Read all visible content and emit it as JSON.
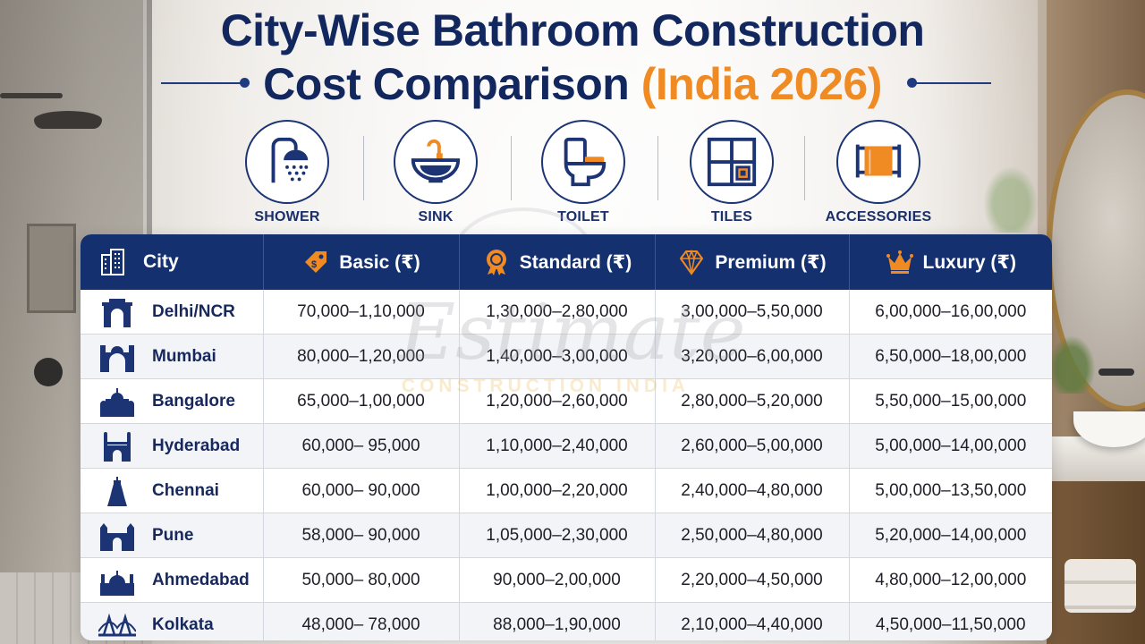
{
  "header": {
    "title_line1": "City-Wise Bathroom Construction",
    "title_line2": "Cost Comparison",
    "title_accent": "(India 2026)"
  },
  "icons": [
    {
      "label": "SHOWER",
      "icon": "shower-icon"
    },
    {
      "label": "SINK",
      "icon": "sink-icon"
    },
    {
      "label": "TOILET",
      "icon": "toilet-icon"
    },
    {
      "label": "TILES",
      "icon": "tiles-icon"
    },
    {
      "label": "ACCESSORIES",
      "icon": "towel-rack-icon"
    }
  ],
  "table": {
    "headers": {
      "city": "City",
      "basic": "Basic (₹)",
      "standard": "Standard (₹)",
      "premium": "Premium (₹)",
      "luxury": "Luxury (₹)"
    },
    "rows": [
      {
        "city": "Delhi/NCR",
        "basic": "70,000–1,10,000",
        "standard": "1,30,000–2,80,000",
        "premium": "3,00,000–5,50,000",
        "luxury": "6,00,000–16,00,000"
      },
      {
        "city": "Mumbai",
        "basic": "80,000–1,20,000",
        "standard": "1,40,000–3,00,000",
        "premium": "3,20,000–6,00,000",
        "luxury": "6,50,000–18,00,000"
      },
      {
        "city": "Bangalore",
        "basic": "65,000–1,00,000",
        "standard": "1,20,000–2,60,000",
        "premium": "2,80,000–5,20,000",
        "luxury": "5,50,000–15,00,000"
      },
      {
        "city": "Hyderabad",
        "basic": "60,000– 95,000",
        "standard": "1,10,000–2,40,000",
        "premium": "2,60,000–5,00,000",
        "luxury": "5,00,000–14,00,000"
      },
      {
        "city": "Chennai",
        "basic": "60,000– 90,000",
        "standard": "1,00,000–2,20,000",
        "premium": "2,40,000–4,80,000",
        "luxury": "5,00,000–13,50,000"
      },
      {
        "city": "Pune",
        "basic": "58,000– 90,000",
        "standard": "1,05,000–2,30,000",
        "premium": "2,50,000–4,80,000",
        "luxury": "5,20,000–14,00,000"
      },
      {
        "city": "Ahmedabad",
        "basic": "50,000– 80,000",
        "standard": "90,000–2,00,000",
        "premium": "2,20,000–4,50,000",
        "luxury": "4,80,000–12,00,000"
      },
      {
        "city": "Kolkata",
        "basic": "48,000– 78,000",
        "standard": "88,000–1,90,000",
        "premium": "2,10,000–4,40,000",
        "luxury": "4,50,000–11,50,000"
      }
    ]
  },
  "watermark": {
    "main": "Estimate",
    "sub": "CONSTRUCTION INDIA"
  },
  "colors": {
    "navy": "#14306f",
    "accent_orange": "#f08a22"
  }
}
